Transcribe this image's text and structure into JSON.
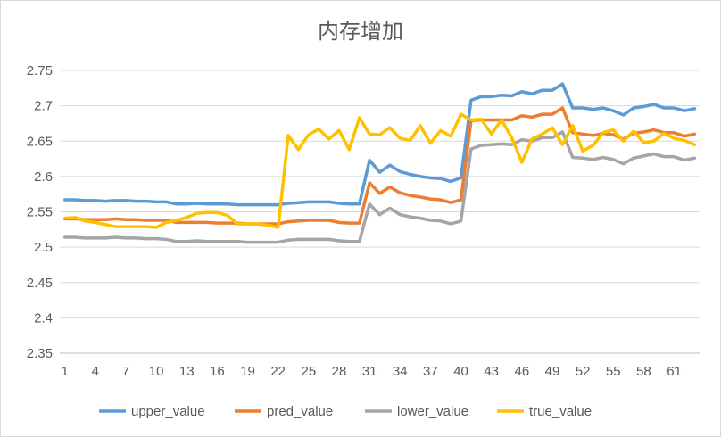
{
  "chart_data": {
    "type": "line",
    "title": "内存增加",
    "xlabel": "",
    "ylabel": "",
    "ylim": [
      2.35,
      2.75
    ],
    "yticks": [
      "2.35",
      "2.4",
      "2.45",
      "2.5",
      "2.55",
      "2.6",
      "2.65",
      "2.7",
      "2.75"
    ],
    "xtick_labels": [
      "1",
      "4",
      "7",
      "10",
      "13",
      "16",
      "19",
      "22",
      "25",
      "28",
      "31",
      "34",
      "37",
      "40",
      "43",
      "46",
      "49",
      "52",
      "55",
      "58",
      "61"
    ],
    "grid": true,
    "legend_position": "bottom",
    "x": [
      1,
      2,
      3,
      4,
      5,
      6,
      7,
      8,
      9,
      10,
      11,
      12,
      13,
      14,
      15,
      16,
      17,
      18,
      19,
      20,
      21,
      22,
      23,
      24,
      25,
      26,
      27,
      28,
      29,
      30,
      31,
      32,
      33,
      34,
      35,
      36,
      37,
      38,
      39,
      40,
      41,
      42,
      43,
      44,
      45,
      46,
      47,
      48,
      49,
      50,
      51,
      52,
      53,
      54,
      55,
      56,
      57,
      58,
      59,
      60,
      61,
      62,
      63
    ],
    "series": [
      {
        "name": "upper_value",
        "color": "#5b9bd5",
        "values": [
          2.567,
          2.567,
          2.566,
          2.566,
          2.565,
          2.566,
          2.566,
          2.565,
          2.565,
          2.564,
          2.564,
          2.561,
          2.561,
          2.562,
          2.561,
          2.561,
          2.561,
          2.56,
          2.56,
          2.56,
          2.56,
          2.56,
          2.562,
          2.563,
          2.564,
          2.564,
          2.564,
          2.562,
          2.561,
          2.561,
          2.623,
          2.606,
          2.616,
          2.607,
          2.603,
          2.6,
          2.598,
          2.597,
          2.593,
          2.598,
          2.708,
          2.713,
          2.713,
          2.715,
          2.714,
          2.72,
          2.717,
          2.722,
          2.722,
          2.731,
          2.697,
          2.697,
          2.695,
          2.697,
          2.693,
          2.687,
          2.697,
          2.699,
          2.702,
          2.697,
          2.697,
          2.693,
          2.696
        ]
      },
      {
        "name": "pred_value",
        "color": "#ed7d31",
        "values": [
          2.54,
          2.54,
          2.539,
          2.539,
          2.539,
          2.54,
          2.539,
          2.539,
          2.538,
          2.538,
          2.538,
          2.535,
          2.535,
          2.535,
          2.535,
          2.534,
          2.534,
          2.534,
          2.533,
          2.533,
          2.533,
          2.533,
          2.536,
          2.537,
          2.538,
          2.538,
          2.538,
          2.535,
          2.534,
          2.534,
          2.591,
          2.576,
          2.585,
          2.577,
          2.573,
          2.571,
          2.568,
          2.567,
          2.563,
          2.567,
          2.679,
          2.68,
          2.68,
          2.68,
          2.68,
          2.686,
          2.684,
          2.688,
          2.688,
          2.697,
          2.662,
          2.66,
          2.658,
          2.661,
          2.659,
          2.653,
          2.661,
          2.663,
          2.666,
          2.662,
          2.662,
          2.657,
          2.66
        ]
      },
      {
        "name": "lower_value",
        "color": "#a5a5a5",
        "values": [
          2.514,
          2.514,
          2.513,
          2.513,
          2.513,
          2.514,
          2.513,
          2.513,
          2.512,
          2.512,
          2.511,
          2.508,
          2.508,
          2.509,
          2.508,
          2.508,
          2.508,
          2.508,
          2.507,
          2.507,
          2.507,
          2.507,
          2.51,
          2.511,
          2.511,
          2.511,
          2.511,
          2.509,
          2.508,
          2.508,
          2.561,
          2.546,
          2.555,
          2.546,
          2.543,
          2.541,
          2.538,
          2.537,
          2.533,
          2.537,
          2.639,
          2.644,
          2.645,
          2.646,
          2.645,
          2.652,
          2.65,
          2.655,
          2.655,
          2.663,
          2.627,
          2.626,
          2.624,
          2.627,
          2.624,
          2.618,
          2.626,
          2.629,
          2.632,
          2.628,
          2.628,
          2.623,
          2.626
        ]
      },
      {
        "name": "true_value",
        "color": "#ffc000",
        "values": [
          2.541,
          2.542,
          2.537,
          2.535,
          2.532,
          2.529,
          2.529,
          2.529,
          2.529,
          2.528,
          2.535,
          2.538,
          2.542,
          2.548,
          2.549,
          2.549,
          2.545,
          2.533,
          2.533,
          2.533,
          2.531,
          2.528,
          2.658,
          2.638,
          2.659,
          2.667,
          2.653,
          2.665,
          2.638,
          2.683,
          2.66,
          2.659,
          2.669,
          2.654,
          2.651,
          2.672,
          2.647,
          2.665,
          2.657,
          2.688,
          2.68,
          2.681,
          2.66,
          2.68,
          2.655,
          2.62,
          2.653,
          2.66,
          2.669,
          2.645,
          2.672,
          2.636,
          2.644,
          2.662,
          2.666,
          2.65,
          2.664,
          2.648,
          2.65,
          2.661,
          2.654,
          2.651,
          2.645
        ]
      }
    ]
  }
}
